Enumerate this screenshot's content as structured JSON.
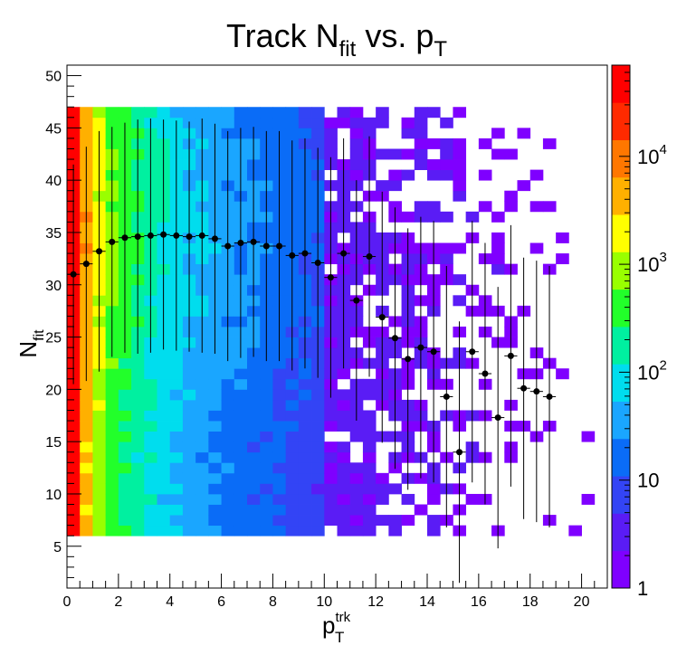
{
  "chart_data": {
    "type": "heatmap",
    "title": "Track N",
    "title_sub": "fit",
    "title_mid": " vs. p",
    "title_sub2": "T",
    "xlabel": "p",
    "xlabel_sup": "trk",
    "xlabel_sub": "T",
    "ylabel": "N",
    "ylabel_sub": "fit",
    "xlim": [
      0,
      21
    ],
    "ylim": [
      1,
      51
    ],
    "x_ticks": [
      0,
      2,
      4,
      6,
      8,
      10,
      12,
      14,
      16,
      18,
      20
    ],
    "y_ticks": [
      5,
      10,
      15,
      20,
      25,
      30,
      35,
      40,
      45,
      50
    ],
    "z_scale": "log",
    "z_range": [
      1,
      70000
    ],
    "z_ticks": [
      {
        "value": 1,
        "base": "1",
        "exp": ""
      },
      {
        "value": 10,
        "base": "10",
        "exp": ""
      },
      {
        "value": 100,
        "base": "10",
        "exp": "2"
      },
      {
        "value": 1000,
        "base": "10",
        "exp": "3"
      },
      {
        "value": 10000,
        "base": "10",
        "exp": "4"
      }
    ],
    "palette": [
      "#7f00ff",
      "#5a1cf5",
      "#3344f5",
      "#0a6cf7",
      "#1aa6ff",
      "#00ddee",
      "#00f0a0",
      "#22ff2a",
      "#99ff00",
      "#ffff00",
      "#ffb000",
      "#ff7700",
      "#ff2a00",
      "#ff0000"
    ],
    "profile_points": [
      {
        "x": 0.25,
        "y": 31.0,
        "err": 10.5
      },
      {
        "x": 0.75,
        "y": 32.0,
        "err": 11.2
      },
      {
        "x": 1.25,
        "y": 33.2,
        "err": 11.5
      },
      {
        "x": 1.75,
        "y": 34.1,
        "err": 11.0
      },
      {
        "x": 2.25,
        "y": 34.5,
        "err": 11.0
      },
      {
        "x": 2.75,
        "y": 34.6,
        "err": 11.2
      },
      {
        "x": 3.25,
        "y": 34.7,
        "err": 11.2
      },
      {
        "x": 3.75,
        "y": 34.8,
        "err": 11.0
      },
      {
        "x": 4.25,
        "y": 34.7,
        "err": 11.0
      },
      {
        "x": 4.75,
        "y": 34.6,
        "err": 11.0
      },
      {
        "x": 5.25,
        "y": 34.7,
        "err": 11.2
      },
      {
        "x": 5.75,
        "y": 34.4,
        "err": 11.0
      },
      {
        "x": 6.25,
        "y": 33.7,
        "err": 11.0
      },
      {
        "x": 6.75,
        "y": 34.0,
        "err": 11.0
      },
      {
        "x": 7.25,
        "y": 34.1,
        "err": 11.0
      },
      {
        "x": 7.75,
        "y": 33.7,
        "err": 11.0
      },
      {
        "x": 8.25,
        "y": 33.7,
        "err": 11.0
      },
      {
        "x": 8.75,
        "y": 32.8,
        "err": 11.0
      },
      {
        "x": 9.25,
        "y": 33.0,
        "err": 11.0
      },
      {
        "x": 9.75,
        "y": 32.1,
        "err": 11.0
      },
      {
        "x": 10.25,
        "y": 30.7,
        "err": 11.5
      },
      {
        "x": 10.75,
        "y": 33.0,
        "err": 11.0
      },
      {
        "x": 11.25,
        "y": 28.5,
        "err": 11.5
      },
      {
        "x": 11.75,
        "y": 32.7,
        "err": 11.5
      },
      {
        "x": 12.25,
        "y": 26.9,
        "err": 12.0
      },
      {
        "x": 12.75,
        "y": 24.9,
        "err": 12.5
      },
      {
        "x": 13.25,
        "y": 22.9,
        "err": 12.5
      },
      {
        "x": 13.75,
        "y": 24.0,
        "err": 12.5
      },
      {
        "x": 14.25,
        "y": 23.6,
        "err": 12.5
      },
      {
        "x": 14.75,
        "y": 19.3,
        "err": 12.5
      },
      {
        "x": 15.25,
        "y": 14.0,
        "err": 12.5
      },
      {
        "x": 15.75,
        "y": 23.6,
        "err": 12.5
      },
      {
        "x": 16.25,
        "y": 21.5,
        "err": 12.5
      },
      {
        "x": 16.75,
        "y": 17.3,
        "err": 12.5
      },
      {
        "x": 17.25,
        "y": 23.2,
        "err": 12.5
      },
      {
        "x": 17.75,
        "y": 20.1,
        "err": 12.5
      },
      {
        "x": 18.25,
        "y": 19.8,
        "err": 12.5
      },
      {
        "x": 18.75,
        "y": 19.3,
        "err": 12.5
      }
    ]
  }
}
